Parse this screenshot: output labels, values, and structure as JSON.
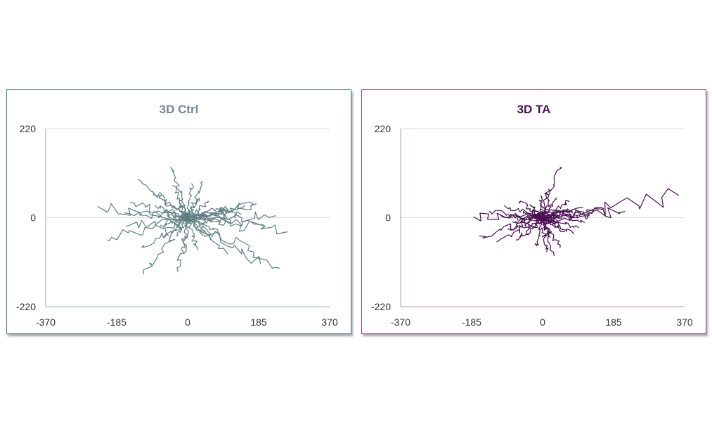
{
  "chart_data": [
    {
      "type": "line",
      "title": "3D Ctrl",
      "xlim": [
        -370,
        370
      ],
      "ylim": [
        -220,
        220
      ],
      "xticks": [
        "-370",
        "-185",
        "0",
        "185",
        "370"
      ],
      "yticks": [
        "220",
        "0",
        "-220"
      ],
      "grid": "horizontal",
      "color": "#5f7f82",
      "accent": "#4e7f86",
      "seed": 11,
      "tracks": [
        {
          "dx": -235,
          "dy": 28
        },
        {
          "dx": -210,
          "dy": -55
        },
        {
          "dx": -165,
          "dy": 12
        },
        {
          "dx": -150,
          "dy": 38
        },
        {
          "dx": -160,
          "dy": -20
        },
        {
          "dx": -115,
          "dy": -140
        },
        {
          "dx": -95,
          "dy": 65
        },
        {
          "dx": -45,
          "dy": 125
        },
        {
          "dx": -120,
          "dy": -75
        },
        {
          "dx": -85,
          "dy": 30
        },
        {
          "dx": -60,
          "dy": -50
        },
        {
          "dx": -40,
          "dy": 80
        },
        {
          "dx": -70,
          "dy": -18
        },
        {
          "dx": -30,
          "dy": -45
        },
        {
          "dx": -20,
          "dy": 30
        },
        {
          "dx": -25,
          "dy": -135
        },
        {
          "dx": -10,
          "dy": -90
        },
        {
          "dx": 10,
          "dy": 85
        },
        {
          "dx": 40,
          "dy": 90
        },
        {
          "dx": 55,
          "dy": 40
        },
        {
          "dx": 25,
          "dy": -80
        },
        {
          "dx": 50,
          "dy": 5
        },
        {
          "dx": 80,
          "dy": -35
        },
        {
          "dx": 60,
          "dy": -55
        },
        {
          "dx": 95,
          "dy": 25
        },
        {
          "dx": 120,
          "dy": 18
        },
        {
          "dx": 110,
          "dy": -15
        },
        {
          "dx": 140,
          "dy": 8
        },
        {
          "dx": 150,
          "dy": 30
        },
        {
          "dx": 165,
          "dy": 30
        },
        {
          "dx": 180,
          "dy": 35
        },
        {
          "dx": 200,
          "dy": -20
        },
        {
          "dx": 230,
          "dy": 5
        },
        {
          "dx": 260,
          "dy": -35
        },
        {
          "dx": 240,
          "dy": -125
        },
        {
          "dx": 190,
          "dy": -115
        },
        {
          "dx": 105,
          "dy": -90
        },
        {
          "dx": -130,
          "dy": 95
        },
        {
          "dx": 30,
          "dy": 50
        },
        {
          "dx": -55,
          "dy": 10
        }
      ]
    },
    {
      "type": "line",
      "title": "3D TA",
      "xlim": [
        -370,
        370
      ],
      "ylim": [
        -220,
        220
      ],
      "xticks": [
        "-370",
        "-185",
        "0",
        "185",
        "370"
      ],
      "yticks": [
        "220",
        "0",
        "-220"
      ],
      "grid": "horizontal",
      "color": "#4a0f52",
      "accent": "#9a3fa0",
      "seed": 29,
      "tracks": [
        {
          "dx": 355,
          "dy": 55
        },
        {
          "dx": 215,
          "dy": 15
        },
        {
          "dx": 160,
          "dy": 22
        },
        {
          "dx": 45,
          "dy": 125
        },
        {
          "dx": 35,
          "dy": 50
        },
        {
          "dx": 15,
          "dy": 70
        },
        {
          "dx": -180,
          "dy": 2
        },
        {
          "dx": -165,
          "dy": -45
        },
        {
          "dx": -140,
          "dy": 15
        },
        {
          "dx": -120,
          "dy": -60
        },
        {
          "dx": -100,
          "dy": 30
        },
        {
          "dx": -90,
          "dy": -30
        },
        {
          "dx": -70,
          "dy": -55
        },
        {
          "dx": -60,
          "dy": 40
        },
        {
          "dx": -50,
          "dy": 10
        },
        {
          "dx": -40,
          "dy": -40
        },
        {
          "dx": -30,
          "dy": 28
        },
        {
          "dx": -15,
          "dy": -70
        },
        {
          "dx": -5,
          "dy": 55
        },
        {
          "dx": 10,
          "dy": -85
        },
        {
          "dx": 20,
          "dy": -50
        },
        {
          "dx": 30,
          "dy": -95
        },
        {
          "dx": 45,
          "dy": -75
        },
        {
          "dx": 55,
          "dy": -35
        },
        {
          "dx": 70,
          "dy": 40
        },
        {
          "dx": 80,
          "dy": -40
        },
        {
          "dx": 95,
          "dy": -25
        },
        {
          "dx": 110,
          "dy": -12
        },
        {
          "dx": 130,
          "dy": 10
        },
        {
          "dx": 105,
          "dy": 25
        },
        {
          "dx": 60,
          "dy": 20
        },
        {
          "dx": -110,
          "dy": 5
        },
        {
          "dx": 90,
          "dy": 5
        },
        {
          "dx": -80,
          "dy": -10
        },
        {
          "dx": 40,
          "dy": -15
        },
        {
          "dx": -25,
          "dy": 5
        }
      ]
    }
  ]
}
